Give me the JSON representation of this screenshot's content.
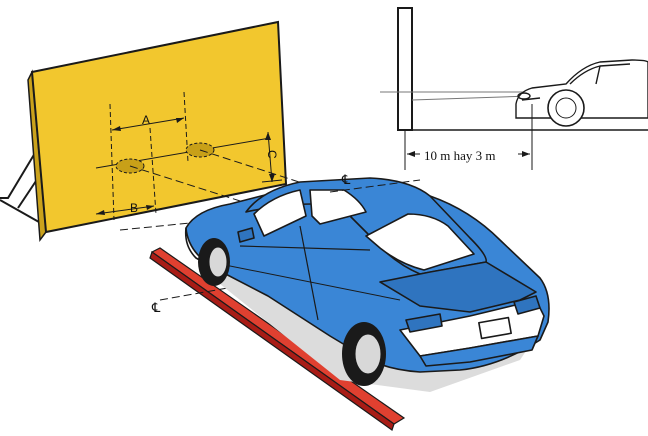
{
  "labels": {
    "a": "A",
    "b": "B",
    "c": "C",
    "distance": "10 m hay 3 m",
    "centerline_screen": "℄",
    "centerline_car": "℄",
    "centerline_ground": "℄"
  },
  "colors": {
    "screen_fill": "#f2c72e",
    "car_body": "#3a86d6",
    "rail": "#d22a22",
    "outline": "#1a1a1a",
    "background": "#ffffff"
  }
}
